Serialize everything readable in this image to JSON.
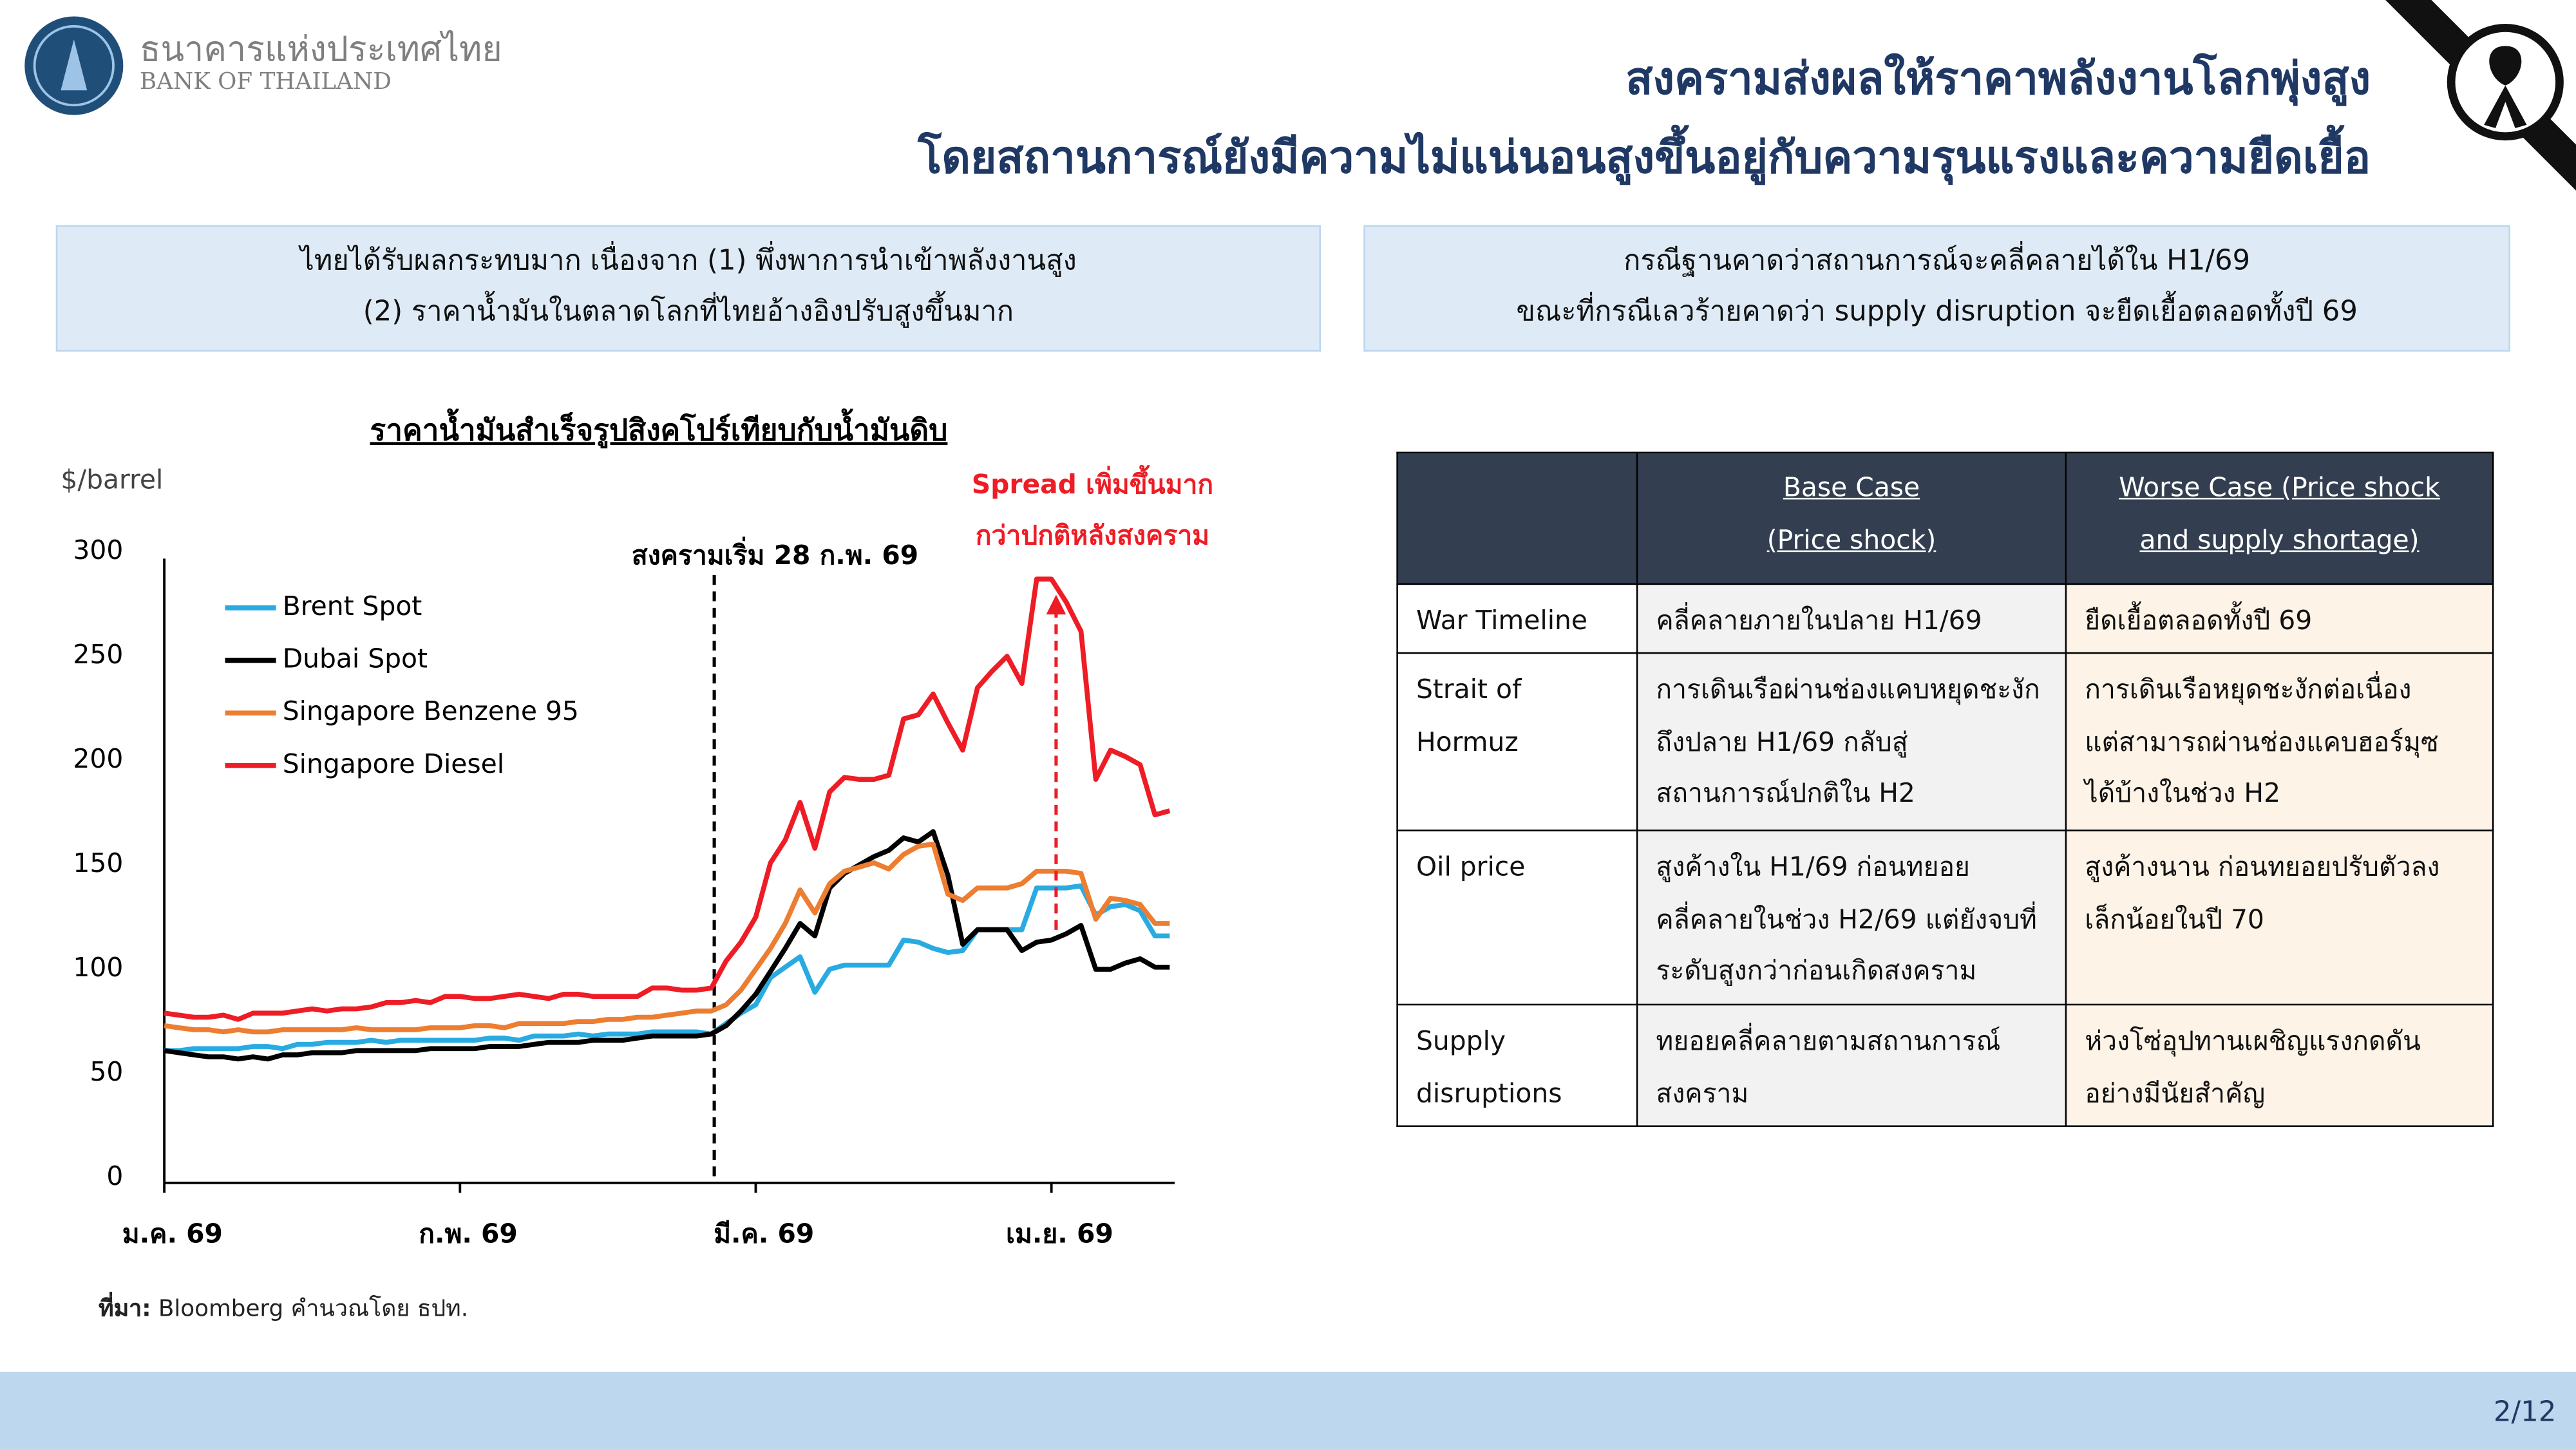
{
  "header": {
    "org_thai": "ธนาคารแห่งประเทศไทย",
    "org_english": "BANK OF THAILAND",
    "title_lines": [
      "สงครามส่งผลให้ราคาพลังงานโลกพุ่งสูง",
      "โดยสถานการณ์ยังมีความไม่แน่นอนสูงขึ้นอยู่กับความรุนแรงและความยืดเยื้อ"
    ]
  },
  "boxes": [
    {
      "lines": [
        "ไทยได้รับผลกระทบมาก เนื่องจาก (1) พึ่งพาการนำเข้าพลังงานสูง",
        "(2) ราคาน้ำมันในตลาดโลกที่ไทยอ้างอิงปรับสูงขึ้นมาก"
      ]
    },
    {
      "lines": [
        "กรณีฐานคาดว่าสถานการณ์จะคลี่คลายได้ใน H1/69",
        "ขณะที่กรณีเลวร้ายคาดว่า supply disruption จะยืดเยื้อตลอดทั้งปี 69"
      ]
    }
  ],
  "chart_data": {
    "type": "line",
    "title": "ราคาน้ำมันสำเร็จรูปสิงคโปร์เทียบกับน้ำมันดิบ",
    "y_label": "$/barrel",
    "categories": [
      "ม.ค. 69",
      null,
      null,
      null,
      null,
      null,
      null,
      null,
      null,
      null,
      null,
      null,
      null,
      null,
      null,
      null,
      null,
      null,
      null,
      null,
      "ก.พ. 69",
      null,
      null,
      null,
      null,
      null,
      null,
      null,
      null,
      null,
      null,
      null,
      null,
      null,
      null,
      null,
      null,
      null,
      null,
      null,
      "มี.ค. 69",
      null,
      null,
      null,
      null,
      null,
      null,
      null,
      null,
      null,
      null,
      null,
      null,
      null,
      null,
      null,
      null,
      null,
      null,
      null,
      "เม.ย. 69",
      null,
      null,
      null,
      null,
      null,
      null,
      null,
      null
    ],
    "ylim": [
      0,
      300
    ],
    "yticks": [
      0,
      50,
      100,
      150,
      200,
      250,
      300
    ],
    "grid": false,
    "legend": "upper left",
    "series": [
      {
        "name": "Brent Spot",
        "color": "#29abe2",
        "values": [
          61,
          61,
          62,
          62,
          62,
          62,
          63,
          63,
          62,
          64,
          64,
          65,
          65,
          65,
          66,
          65,
          66,
          66,
          66,
          66,
          66,
          66,
          67,
          67,
          66,
          68,
          68,
          68,
          69,
          68,
          69,
          69,
          69,
          70,
          70,
          70,
          70,
          69,
          74,
          79,
          83,
          96,
          101,
          106,
          89,
          100,
          102,
          102,
          102,
          102,
          114,
          113,
          110,
          108,
          109,
          119,
          119,
          119,
          119,
          139,
          139,
          139,
          140,
          126,
          130,
          131,
          128,
          116,
          116
        ]
      },
      {
        "name": "Dubai Spot",
        "color": "#000000",
        "values": [
          61,
          60,
          59,
          58,
          58,
          57,
          58,
          57,
          59,
          59,
          60,
          60,
          60,
          61,
          61,
          61,
          61,
          61,
          62,
          62,
          62,
          62,
          63,
          63,
          63,
          64,
          65,
          65,
          65,
          66,
          66,
          66,
          67,
          68,
          68,
          68,
          68,
          69,
          73,
          80,
          88,
          99,
          110,
          122,
          116,
          139,
          146,
          150,
          154,
          157,
          163,
          161,
          166,
          145,
          112,
          119,
          119,
          119,
          109,
          113,
          114,
          117,
          121,
          100,
          100,
          103,
          105,
          101,
          101
        ]
      },
      {
        "name": "Singapore Benzene 95",
        "color": "#ed7d31",
        "values": [
          73,
          72,
          71,
          71,
          70,
          71,
          70,
          70,
          71,
          71,
          71,
          71,
          71,
          72,
          71,
          71,
          71,
          71,
          72,
          72,
          72,
          73,
          73,
          72,
          74,
          74,
          74,
          74,
          75,
          75,
          76,
          76,
          77,
          77,
          78,
          79,
          80,
          80,
          83,
          90,
          100,
          110,
          122,
          138,
          127,
          141,
          147,
          149,
          151,
          148,
          155,
          159,
          160,
          136,
          133,
          139,
          139,
          139,
          141,
          147,
          147,
          147,
          146,
          124,
          134,
          133,
          131,
          122,
          122
        ]
      },
      {
        "name": "Singapore Diesel",
        "color": "#ee1c25",
        "values": [
          79,
          78,
          77,
          77,
          78,
          76,
          79,
          79,
          79,
          80,
          81,
          80,
          81,
          81,
          82,
          84,
          84,
          85,
          84,
          87,
          87,
          86,
          86,
          87,
          88,
          87,
          86,
          88,
          88,
          87,
          87,
          87,
          87,
          91,
          91,
          90,
          90,
          91,
          104,
          113,
          125,
          151,
          162,
          180,
          158,
          185,
          192,
          191,
          191,
          193,
          220,
          222,
          232,
          218,
          205,
          235,
          243,
          250,
          237,
          287,
          287,
          276,
          262,
          191,
          205,
          202,
          198,
          174,
          176
        ]
      }
    ],
    "annotations": {
      "war_start": "สงครามเริ่ม 28 ก.พ. 69",
      "spread_lines": [
        "Spread เพิ่มขึ้นมาก",
        "กว่าปกติหลังสงคราม"
      ]
    }
  },
  "source": {
    "label": "ที่มา:",
    "text": "Bloomberg คำนวณโดย ธปท."
  },
  "table": {
    "headers": [
      [
        "Base Case",
        "(Price shock)"
      ],
      [
        "Worse Case (Price shock",
        "and supply shortage)"
      ]
    ],
    "rows": [
      [
        [
          "War Timeline"
        ],
        [
          "คลี่คลายภายในปลาย H1/69"
        ],
        [
          "ยืดเยื้อตลอดทั้งปี 69"
        ]
      ],
      [
        [
          "Strait of",
          "Hormuz"
        ],
        [
          "การเดินเรือผ่านช่องแคบหยุดชะงัก",
          "ถึงปลาย H1/69 กลับสู่",
          "สถานการณ์ปกติใน H2"
        ],
        [
          "การเดินเรือหยุดชะงักต่อเนื่อง",
          "แต่สามารถผ่านช่องแคบฮอร์มุซ",
          "ได้บ้างในช่วง H2"
        ]
      ],
      [
        [
          "Oil price"
        ],
        [
          "สูงค้างใน H1/69 ก่อนทยอย",
          "คลี่คลายในช่วง H2/69 แต่ยังจบที่",
          "ระดับสูงกว่าก่อนเกิดสงคราม"
        ],
        [
          "สูงค้างนาน ก่อนทยอยปรับตัวลง",
          "เล็กน้อยในปี 70"
        ]
      ],
      [
        [
          "Supply",
          "disruptions"
        ],
        [
          "ทยอยคลี่คลายตามสถานการณ์",
          "สงคราม"
        ],
        [
          "ห่วงโซ่อุปทานเผชิญแรงกดดัน",
          "อย่างมีนัยสำคัญ"
        ]
      ]
    ]
  },
  "page_number": "2/12"
}
